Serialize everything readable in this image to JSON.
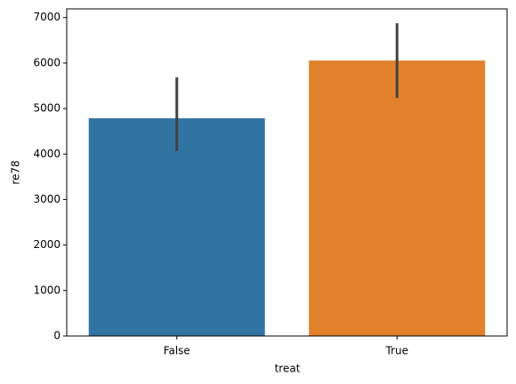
{
  "chart_data": {
    "type": "bar",
    "x_label": "treat",
    "y_label": "re78",
    "categories": [
      "False",
      "True"
    ],
    "values": [
      4785,
      6055
    ],
    "ci_low": [
      4063,
      5234
    ],
    "ci_high": [
      5684,
      6875
    ],
    "colors": [
      "#3274a1",
      "#e1812c"
    ],
    "errorbar_color": "#424242",
    "ylim": [
      0,
      7190
    ],
    "yticks": [
      0,
      1000,
      2000,
      3000,
      4000,
      5000,
      6000,
      7000
    ],
    "grid": false
  }
}
